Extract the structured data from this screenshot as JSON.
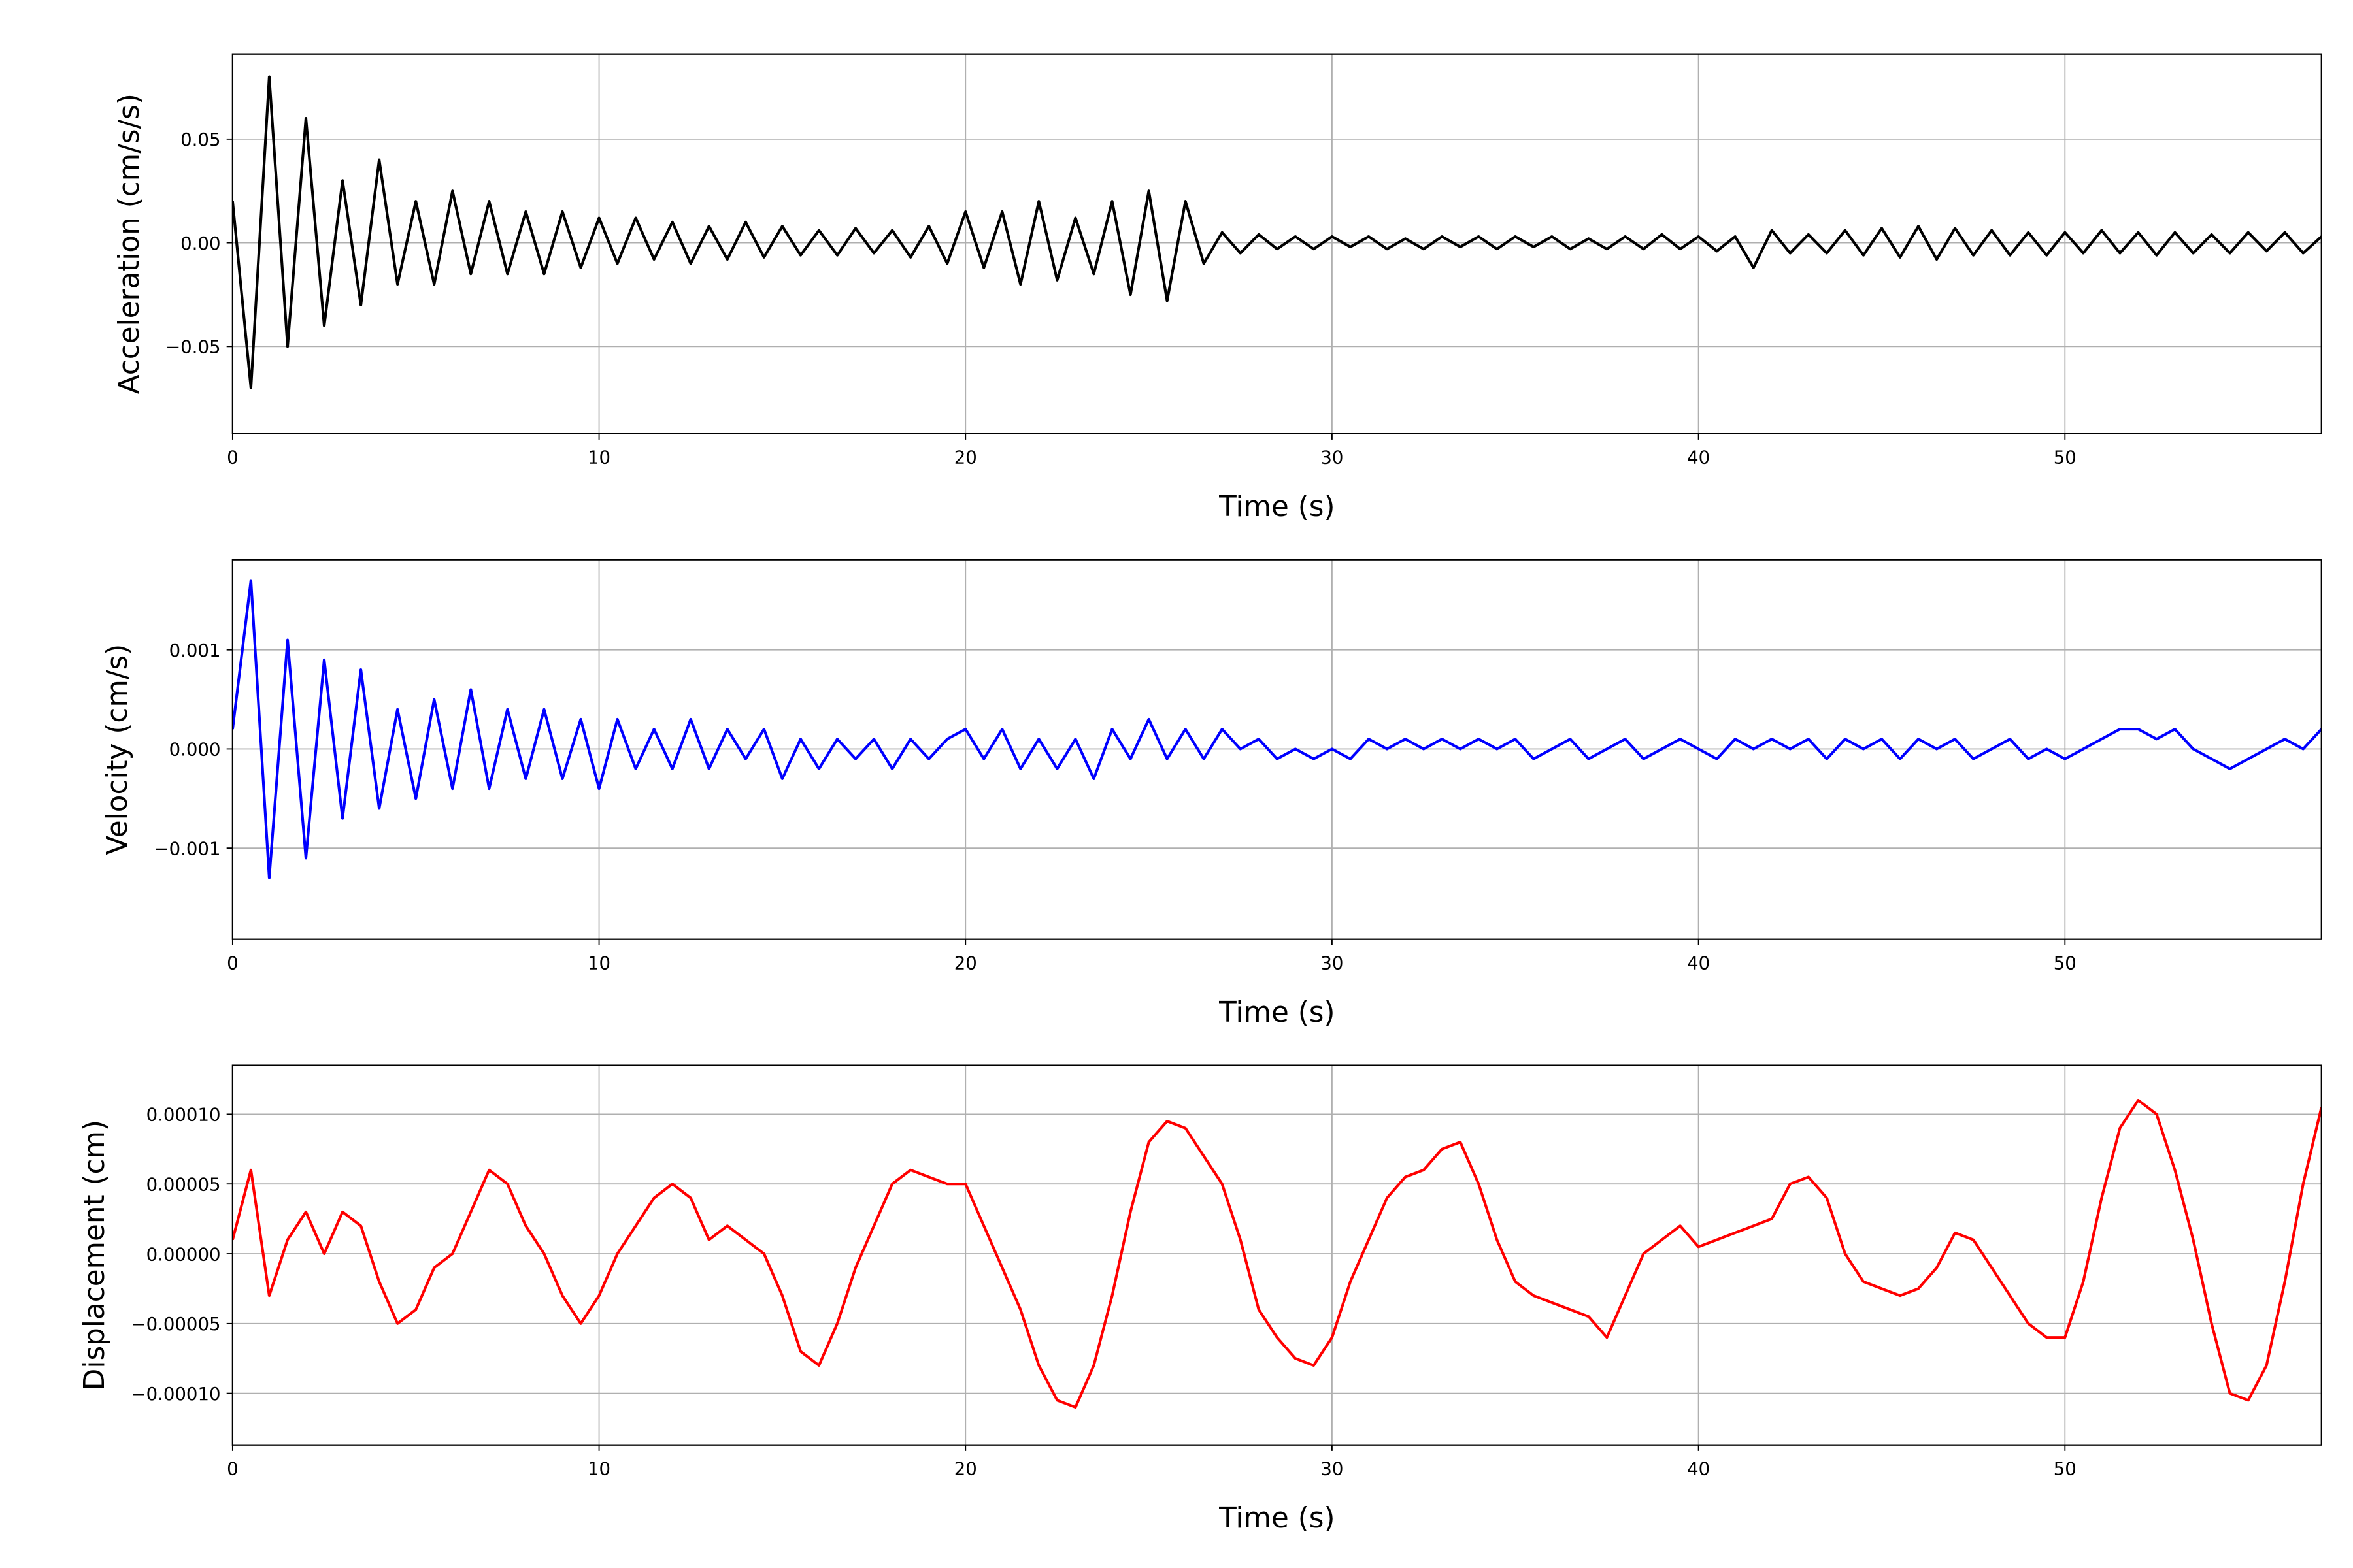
{
  "chart_data": [
    {
      "type": "line",
      "ylabel": "Acceleration (cm/s/s)",
      "xlabel": "Time (s)",
      "color": "#000000",
      "xlim": [
        0,
        57
      ],
      "xticks": [
        0,
        10,
        20,
        30,
        40,
        50
      ],
      "ylim": [
        -0.092,
        0.091
      ],
      "yticks": [
        {
          "value": -0.05,
          "label": "−0.05"
        },
        {
          "value": 0,
          "label": "0.00"
        },
        0.05
      ],
      "grid": true,
      "x": [
        0,
        0.5,
        1,
        1.5,
        2,
        2.5,
        3,
        3.5,
        4,
        4.5,
        5,
        5.5,
        6,
        6.5,
        7,
        7.5,
        8,
        8.5,
        9,
        9.5,
        10,
        10.5,
        11,
        11.5,
        12,
        12.5,
        13,
        13.5,
        14,
        14.5,
        15,
        15.5,
        16,
        16.5,
        17,
        17.5,
        18,
        18.5,
        19,
        19.5,
        20,
        20.5,
        21,
        21.5,
        22,
        22.5,
        23,
        23.5,
        24,
        24.5,
        25,
        25.5,
        26,
        26.5,
        27,
        27.5,
        28,
        28.5,
        29,
        29.5,
        30,
        30.5,
        31,
        31.5,
        32,
        32.5,
        33,
        33.5,
        34,
        34.5,
        35,
        35.5,
        36,
        36.5,
        37,
        37.5,
        38,
        38.5,
        39,
        39.5,
        40,
        40.5,
        41,
        41.5,
        42,
        42.5,
        43,
        43.5,
        44,
        44.5,
        45,
        45.5,
        46,
        46.5,
        47,
        47.5,
        48,
        48.5,
        49,
        49.5,
        50,
        50.5,
        51,
        51.5,
        52,
        52.5,
        53,
        53.5,
        54,
        54.5,
        55,
        55.5,
        56,
        56.5,
        57
      ],
      "values": [
        0.02,
        -0.07,
        0.08,
        -0.05,
        0.06,
        -0.04,
        0.03,
        -0.03,
        0.04,
        -0.02,
        0.02,
        -0.02,
        0.025,
        -0.015,
        0.02,
        -0.015,
        0.015,
        -0.015,
        0.015,
        -0.012,
        0.012,
        -0.01,
        0.012,
        -0.008,
        0.01,
        -0.01,
        0.008,
        -0.008,
        0.01,
        -0.007,
        0.008,
        -0.006,
        0.006,
        -0.006,
        0.007,
        -0.005,
        0.006,
        -0.007,
        0.008,
        -0.01,
        0.015,
        -0.012,
        0.015,
        -0.02,
        0.02,
        -0.018,
        0.012,
        -0.015,
        0.02,
        -0.025,
        0.025,
        -0.028,
        0.02,
        -0.01,
        0.005,
        -0.005,
        0.004,
        -0.003,
        0.003,
        -0.003,
        0.003,
        -0.002,
        0.003,
        -0.003,
        0.002,
        -0.003,
        0.003,
        -0.002,
        0.003,
        -0.003,
        0.003,
        -0.002,
        0.003,
        -0.003,
        0.002,
        -0.003,
        0.003,
        -0.003,
        0.004,
        -0.003,
        0.003,
        -0.004,
        0.003,
        -0.012,
        0.006,
        -0.005,
        0.004,
        -0.005,
        0.006,
        -0.006,
        0.007,
        -0.007,
        0.008,
        -0.008,
        0.007,
        -0.006,
        0.006,
        -0.006,
        0.005,
        -0.006,
        0.005,
        -0.005,
        0.006,
        -0.005,
        0.005,
        -0.006,
        0.005,
        -0.005,
        0.004,
        -0.005,
        0.005,
        -0.004,
        0.005,
        -0.005,
        0.003
      ]
    },
    {
      "type": "line",
      "ylabel": "Velocity (cm/s)",
      "xlabel": "Time (s)",
      "color": "#0000ff",
      "xlim": [
        0,
        57
      ],
      "xticks": [
        0,
        10,
        20,
        30,
        40,
        50
      ],
      "ylim": [
        -0.00192,
        0.00191
      ],
      "yticks": [
        {
          "value": -0.001,
          "label": "−0.001"
        },
        {
          "value": 0,
          "label": "0.000"
        },
        0.001
      ],
      "grid": true,
      "x": [
        0,
        0.5,
        1,
        1.5,
        2,
        2.5,
        3,
        3.5,
        4,
        4.5,
        5,
        5.5,
        6,
        6.5,
        7,
        7.5,
        8,
        8.5,
        9,
        9.5,
        10,
        10.5,
        11,
        11.5,
        12,
        12.5,
        13,
        13.5,
        14,
        14.5,
        15,
        15.5,
        16,
        16.5,
        17,
        17.5,
        18,
        18.5,
        19,
        19.5,
        20,
        20.5,
        21,
        21.5,
        22,
        22.5,
        23,
        23.5,
        24,
        24.5,
        25,
        25.5,
        26,
        26.5,
        27,
        27.5,
        28,
        28.5,
        29,
        29.5,
        30,
        30.5,
        31,
        31.5,
        32,
        32.5,
        33,
        33.5,
        34,
        34.5,
        35,
        35.5,
        36,
        36.5,
        37,
        37.5,
        38,
        38.5,
        39,
        39.5,
        40,
        40.5,
        41,
        41.5,
        42,
        42.5,
        43,
        43.5,
        44,
        44.5,
        45,
        45.5,
        46,
        46.5,
        47,
        47.5,
        48,
        48.5,
        49,
        49.5,
        50,
        50.5,
        51,
        51.5,
        52,
        52.5,
        53,
        53.5,
        54,
        54.5,
        55,
        55.5,
        56,
        56.5,
        57
      ],
      "values": [
        0.0002,
        0.0017,
        -0.0013,
        0.0011,
        -0.0011,
        0.0009,
        -0.0007,
        0.0008,
        -0.0006,
        0.0004,
        -0.0005,
        0.0005,
        -0.0004,
        0.0006,
        -0.0004,
        0.0004,
        -0.0003,
        0.0004,
        -0.0003,
        0.0003,
        -0.0004,
        0.0003,
        -0.0002,
        0.0002,
        -0.0002,
        0.0003,
        -0.0002,
        0.0002,
        -0.0001,
        0.0002,
        -0.0003,
        0.0001,
        -0.0002,
        0.0001,
        -0.0001,
        0.0001,
        -0.0002,
        0.0001,
        -0.0001,
        0.0001,
        0.0002,
        -0.0001,
        0.0002,
        -0.0002,
        0.0001,
        -0.0002,
        0.0001,
        -0.0003,
        0.0002,
        -0.0001,
        0.0003,
        -0.0001,
        0.0002,
        -0.0001,
        0.0002,
        0,
        0.0001,
        -0.0001,
        0,
        -0.0001,
        0,
        -0.0001,
        0.0001,
        0,
        0.0001,
        0,
        0.0001,
        0,
        0.0001,
        0,
        0.0001,
        -0.0001,
        0,
        0.0001,
        -0.0001,
        0,
        0.0001,
        -0.0001,
        0,
        0.0001,
        0,
        -0.0001,
        0.0001,
        0,
        0.0001,
        0,
        0.0001,
        -0.0001,
        0.0001,
        0,
        0.0001,
        -0.0001,
        0.0001,
        0,
        0.0001,
        -0.0001,
        0,
        0.0001,
        -0.0001,
        0,
        -0.0001,
        0,
        0.0001,
        0.0002,
        0.0002,
        0.0001,
        0.0002,
        0,
        -0.0001,
        -0.0002,
        -0.0001,
        0,
        0.0001,
        0,
        0.0002
      ]
    },
    {
      "type": "line",
      "ylabel": "Displacement (cm)",
      "xlabel": "Time (s)",
      "color": "#ff0000",
      "xlim": [
        0,
        57
      ],
      "xticks": [
        0,
        10,
        20,
        30,
        40,
        50
      ],
      "ylim": [
        -0.000137,
        0.000135
      ],
      "yticks": [
        {
          "value": -0.0001,
          "label": "−0.00010"
        },
        {
          "value": -5e-05,
          "label": "−0.00005"
        },
        {
          "value": 0,
          "label": "0.00000"
        },
        {
          "value": 5e-05,
          "label": "0.00005"
        },
        {
          "value": 0.0001,
          "label": "0.00010"
        }
      ],
      "grid": true,
      "x": [
        0,
        0.5,
        1,
        1.5,
        2,
        2.5,
        3,
        3.5,
        4,
        4.5,
        5,
        5.5,
        6,
        6.5,
        7,
        7.5,
        8,
        8.5,
        9,
        9.5,
        10,
        10.5,
        11,
        11.5,
        12,
        12.5,
        13,
        13.5,
        14,
        14.5,
        15,
        15.5,
        16,
        16.5,
        17,
        17.5,
        18,
        18.5,
        19,
        19.5,
        20,
        20.5,
        21,
        21.5,
        22,
        22.5,
        23,
        23.5,
        24,
        24.5,
        25,
        25.5,
        26,
        26.5,
        27,
        27.5,
        28,
        28.5,
        29,
        29.5,
        30,
        30.5,
        31,
        31.5,
        32,
        32.5,
        33,
        33.5,
        34,
        34.5,
        35,
        35.5,
        36,
        36.5,
        37,
        37.5,
        38,
        38.5,
        39,
        39.5,
        40,
        40.5,
        41,
        41.5,
        42,
        42.5,
        43,
        43.5,
        44,
        44.5,
        45,
        45.5,
        46,
        46.5,
        47,
        47.5,
        48,
        48.5,
        49,
        49.5,
        50,
        50.5,
        51,
        51.5,
        52,
        52.5,
        53,
        53.5,
        54,
        54.5,
        55,
        55.5,
        56,
        56.5,
        57
      ],
      "values": [
        1e-05,
        6e-05,
        -3e-05,
        1e-05,
        3e-05,
        0,
        3e-05,
        2e-05,
        -2e-05,
        -5e-05,
        -4e-05,
        -1e-05,
        0,
        3e-05,
        6e-05,
        5e-05,
        2e-05,
        0,
        -3e-05,
        -5e-05,
        -3e-05,
        0,
        2e-05,
        4e-05,
        5e-05,
        4e-05,
        1e-05,
        2e-05,
        1e-05,
        0,
        -3e-05,
        -7e-05,
        -8e-05,
        -5e-05,
        -1e-05,
        2e-05,
        5e-05,
        6e-05,
        5.5e-05,
        5e-05,
        5e-05,
        2e-05,
        -1e-05,
        -4e-05,
        -8e-05,
        -0.000105,
        -0.00011,
        -8e-05,
        -3e-05,
        3e-05,
        8e-05,
        9.5e-05,
        9e-05,
        7e-05,
        5e-05,
        1e-05,
        -4e-05,
        -6e-05,
        -7.5e-05,
        -8e-05,
        -6e-05,
        -2e-05,
        1e-05,
        4e-05,
        5.5e-05,
        6e-05,
        7.5e-05,
        8e-05,
        5e-05,
        1e-05,
        -2e-05,
        -3e-05,
        -3.5e-05,
        -4e-05,
        -4.5e-05,
        -6e-05,
        -3e-05,
        0,
        1e-05,
        2e-05,
        5e-06,
        1e-05,
        1.5e-05,
        2e-05,
        2.5e-05,
        5e-05,
        5.5e-05,
        4e-05,
        0,
        -2e-05,
        -2.5e-05,
        -3e-05,
        -2.5e-05,
        -1e-05,
        1.5e-05,
        1e-05,
        -1e-05,
        -3e-05,
        -5e-05,
        -6e-05,
        -6e-05,
        -2e-05,
        4e-05,
        9e-05,
        0.00011,
        0.0001,
        6e-05,
        1e-05,
        -5e-05,
        -0.0001,
        -0.000105,
        -8e-05,
        -2e-05,
        5e-05,
        0.000105
      ]
    }
  ]
}
